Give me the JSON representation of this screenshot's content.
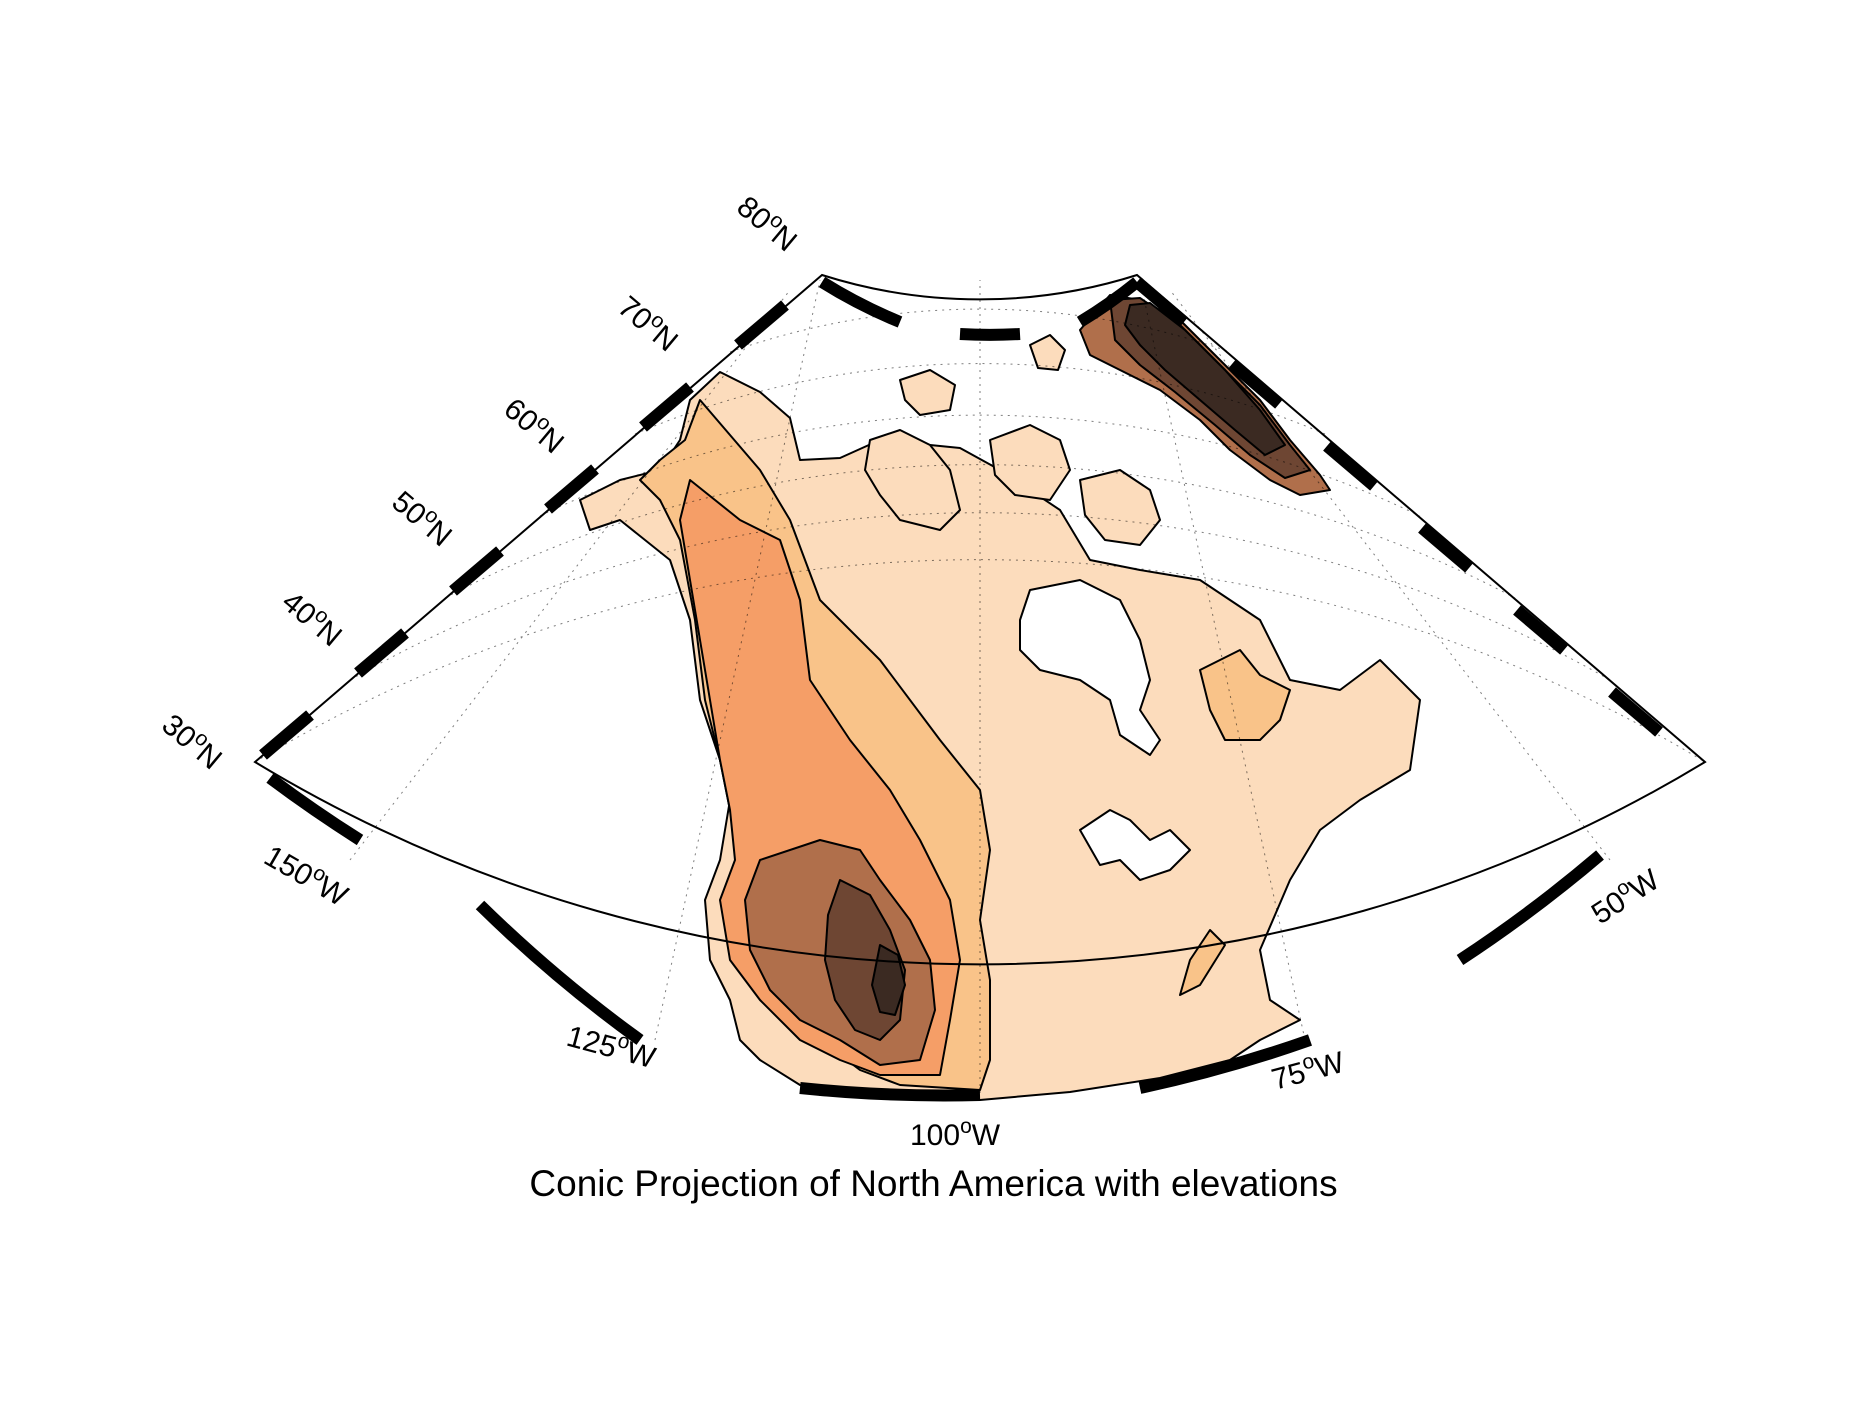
{
  "title": "Conic Projection of North America with elevations",
  "projection": "conic",
  "extent": {
    "lat": [
      30,
      80
    ],
    "lon": [
      -170,
      -25
    ]
  },
  "lat_labels": [
    {
      "deg": "30",
      "hemi": "N",
      "lat": 30
    },
    {
      "deg": "40",
      "hemi": "N",
      "lat": 40
    },
    {
      "deg": "50",
      "hemi": "N",
      "lat": 50
    },
    {
      "deg": "60",
      "hemi": "N",
      "lat": 60
    },
    {
      "deg": "70",
      "hemi": "N",
      "lat": 70
    },
    {
      "deg": "80",
      "hemi": "N",
      "lat": 80
    }
  ],
  "lon_labels": [
    {
      "deg": "150",
      "hemi": "W",
      "lon": -150
    },
    {
      "deg": "125",
      "hemi": "W",
      "lon": -125
    },
    {
      "deg": "100",
      "hemi": "W",
      "lon": -100
    },
    {
      "deg": "75",
      "hemi": "W",
      "lon": -75
    },
    {
      "deg": "50",
      "hemi": "W",
      "lon": -50
    }
  ],
  "grid": true,
  "colors": {
    "water": "#ffffff",
    "elevation_levels": [
      "#fcdcbc",
      "#f9c389",
      "#f59e67",
      "#b06f4b",
      "#6e4633",
      "#3b2a22"
    ],
    "contour": "#000000",
    "frame_dark": "#000000",
    "frame_light": "#ffffff"
  }
}
